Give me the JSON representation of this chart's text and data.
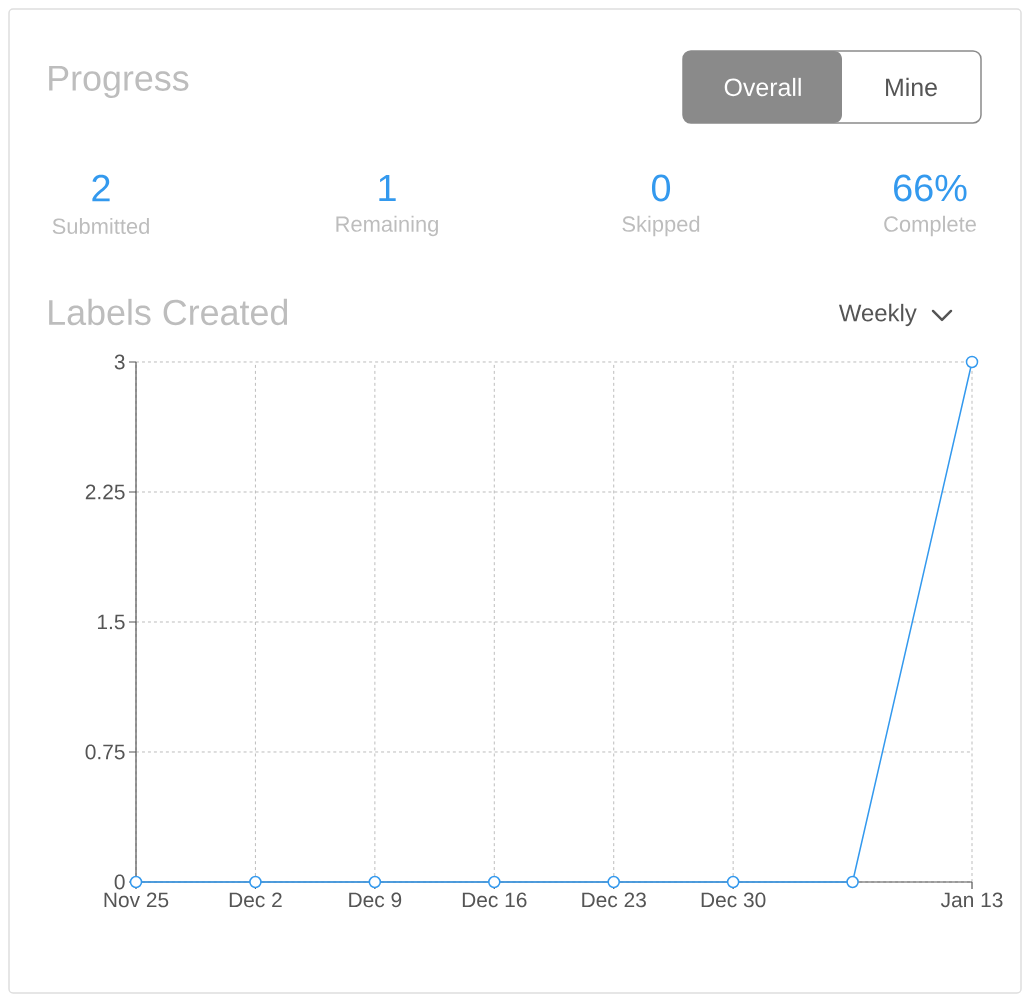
{
  "chart_data": [
    {
      "type": "other",
      "title": "Progress",
      "annotations": [
        "Overall",
        "Mine",
        "2",
        "Submitted",
        "1",
        "Remaining",
        "0",
        "Skipped",
        "66%",
        "Complete"
      ]
    },
    {
      "type": "line",
      "title": "Labels Created",
      "annotations": [
        "Weekly"
      ],
      "categories": [
        "Nov 25",
        "Dec 2",
        "Dec 9",
        "Dec 16",
        "Dec 23",
        "Dec 30",
        null,
        "Jan 13"
      ],
      "series": [
        {
          "color": "#3399ee",
          "values": [
            0,
            0,
            0,
            0,
            0,
            0,
            0,
            3
          ]
        }
      ],
      "ylim": [
        0,
        3
      ],
      "yticks": [
        0,
        0.75,
        1.5,
        2.25,
        3
      ],
      "grid": true,
      "marker": "circle",
      "line_style": "solid"
    }
  ]
}
